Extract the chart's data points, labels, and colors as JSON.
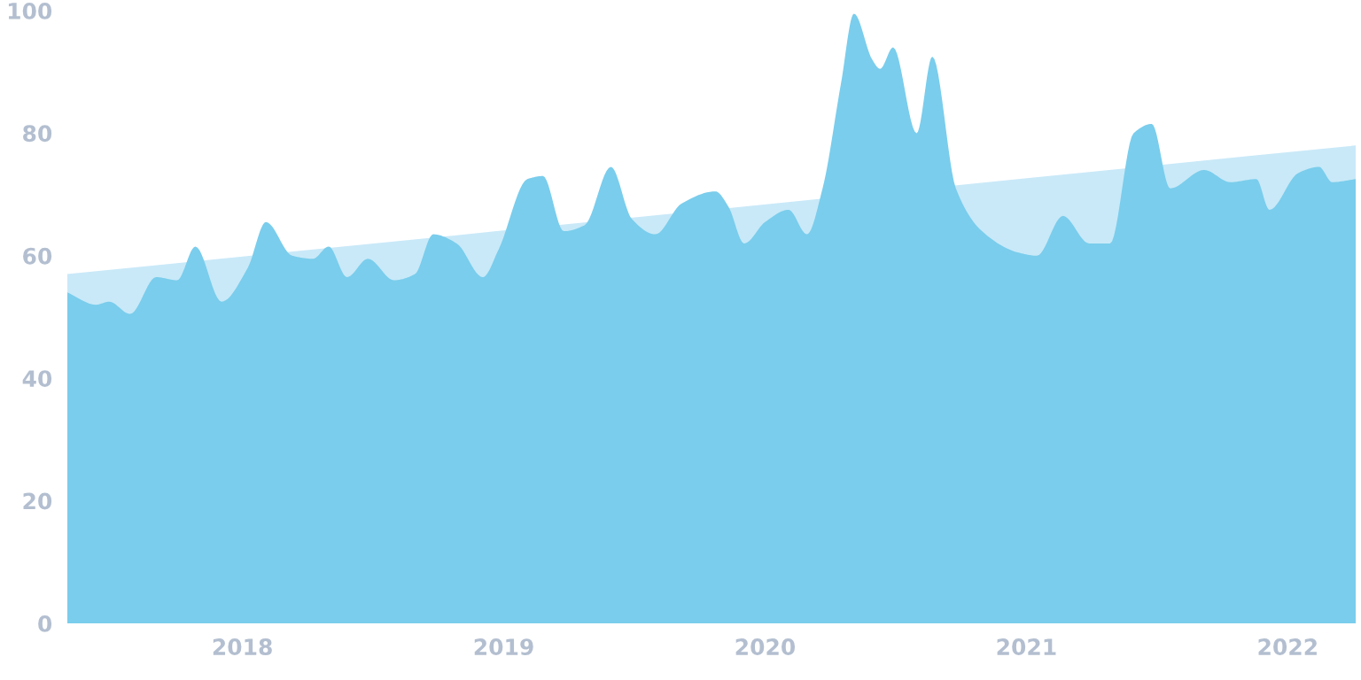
{
  "chart_data": {
    "type": "area",
    "xlim": [
      2017.33,
      2022.26
    ],
    "ylim": [
      0,
      100
    ],
    "xticks": [
      2018,
      2019,
      2020,
      2021,
      2022
    ],
    "yticks": [
      0,
      20,
      40,
      60,
      80,
      100
    ],
    "series": [
      {
        "color": "#c9e9f8",
        "x": [
          2017.33,
          2022.26
        ],
        "values": [
          57,
          78
        ]
      },
      {
        "color": "#7acdec",
        "x": [
          2017.33,
          2017.44,
          2017.49,
          2017.57,
          2017.67,
          2017.75,
          2017.82,
          2017.92,
          2018.02,
          2018.09,
          2018.19,
          2018.27,
          2018.33,
          2018.4,
          2018.48,
          2018.58,
          2018.66,
          2018.73,
          2018.82,
          2018.92,
          2018.98,
          2019.09,
          2019.15,
          2019.23,
          2019.31,
          2019.41,
          2019.49,
          2019.58,
          2019.68,
          2019.81,
          2019.86,
          2019.92,
          2020.0,
          2020.09,
          2020.16,
          2020.22,
          2020.29,
          2020.34,
          2020.41,
          2020.44,
          2020.49,
          2020.58,
          2020.64,
          2020.73,
          2020.83,
          2020.97,
          2021.04,
          2021.14,
          2021.24,
          2021.32,
          2021.41,
          2021.48,
          2021.55,
          2021.68,
          2021.78,
          2021.88,
          2021.93,
          2022.04,
          2022.12,
          2022.17,
          2022.26
        ],
        "values": [
          54,
          52,
          52.5,
          50.5,
          56.5,
          56,
          61.5,
          52.5,
          58,
          65.5,
          60,
          59.5,
          61.5,
          56.5,
          59.5,
          56,
          57,
          63.5,
          62,
          56.5,
          61,
          72.5,
          73,
          64,
          65,
          74.5,
          66,
          63.5,
          68.5,
          70.5,
          68,
          62,
          65.5,
          67.5,
          63.5,
          71,
          88,
          99.5,
          92,
          90.5,
          94,
          80,
          92.5,
          71,
          64,
          60.5,
          60,
          66.5,
          62,
          62,
          80,
          81.5,
          71,
          74,
          72,
          72.5,
          67.5,
          73.5,
          74.5,
          72,
          72.5
        ]
      }
    ]
  }
}
